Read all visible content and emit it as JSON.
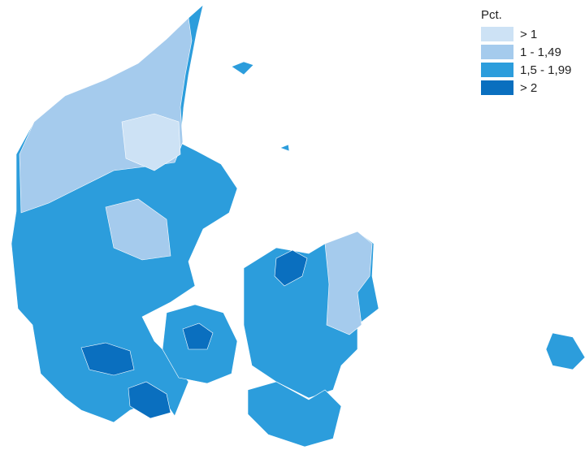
{
  "legend": {
    "title": "Pct.",
    "items": [
      {
        "label": "> 1",
        "color": "#cde2f5"
      },
      {
        "label": "1 - 1,49",
        "color": "#a5cbed"
      },
      {
        "label": "1,5 - 1,99",
        "color": "#2c9ddc"
      },
      {
        "label": "> 2",
        "color": "#0a6fbf"
      }
    ]
  }
}
